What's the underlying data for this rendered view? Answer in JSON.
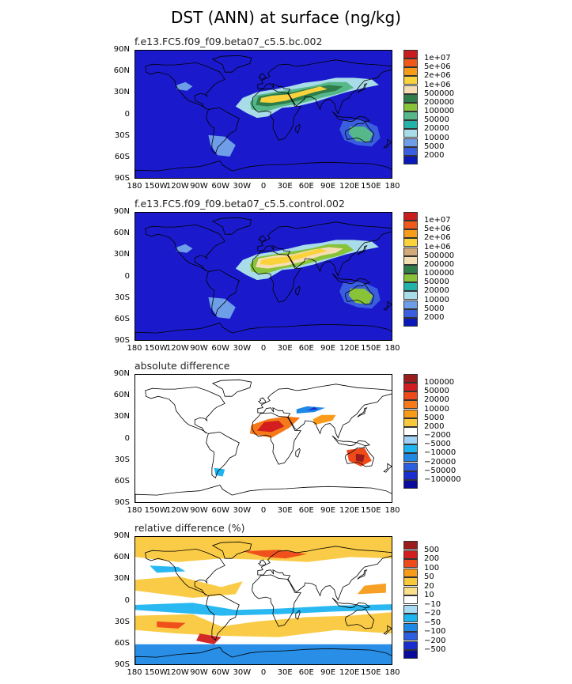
{
  "title": "DST (ANN) at surface (ng/kg)",
  "lat_ticks": [
    "90N",
    "60N",
    "30N",
    "0",
    "30S",
    "60S",
    "90S"
  ],
  "lon_ticks": [
    "180",
    "150W",
    "120W",
    "90W",
    "60W",
    "30W",
    "0",
    "30E",
    "60E",
    "90E",
    "120E",
    "150E",
    "180"
  ],
  "panels": [
    {
      "title": "f.e13.FC5.f09_f09.beta07_c5.5.bc.002",
      "ocean": "#1a1acc",
      "legend": [
        "1e+07",
        "5e+06",
        "2e+06",
        "1e+06",
        "500000",
        "200000",
        "100000",
        "50000",
        "20000",
        "10000",
        "5000",
        "2000"
      ],
      "colors": [
        "#c81e1e",
        "#ef5a1a",
        "#f79b1a",
        "#fad23c",
        "#f5deb3",
        "#2e7d4a",
        "#88c33a",
        "#56b88a",
        "#22b2a8",
        "#a8dce8",
        "#6e9ee8",
        "#3a5ee0",
        "#0a18b8"
      ]
    },
    {
      "title": "f.e13.FC5.f09_f09.beta07_c5.5.control.002",
      "ocean": "#1a1acc",
      "legend": [
        "1e+07",
        "5e+06",
        "2e+06",
        "1e+06",
        "500000",
        "200000",
        "100000",
        "50000",
        "20000",
        "10000",
        "5000",
        "2000"
      ],
      "colors": [
        "#c81e1e",
        "#ef5a1a",
        "#f79b1a",
        "#fad23c",
        "#d2aa7a",
        "#f5deb3",
        "#2e7d4a",
        "#88c33a",
        "#22b2a8",
        "#a8dce8",
        "#6e9ee8",
        "#3a5ee0",
        "#0a18b8"
      ]
    },
    {
      "title": "absolute difference",
      "ocean": "#ffffff",
      "legend": [
        "100000",
        "50000",
        "20000",
        "10000",
        "5000",
        "2000",
        "−2000",
        "−5000",
        "−10000",
        "−20000",
        "−50000",
        "−100000"
      ],
      "colors": [
        "#9b1c1c",
        "#d21e1e",
        "#ef4a1a",
        "#f77a1a",
        "#fa9b1a",
        "#fac83c",
        "#ffffff",
        "#a0d2f5",
        "#1eb4f0",
        "#1e88e5",
        "#2c5ee0",
        "#1a2ed0",
        "#0a0a9b"
      ]
    },
    {
      "title": "relative difference (%)",
      "ocean": "#ffffff",
      "legend": [
        "500",
        "200",
        "100",
        "50",
        "20",
        "10",
        "−10",
        "−20",
        "−50",
        "−100",
        "−200",
        "−500"
      ],
      "colors": [
        "#9b1c1c",
        "#d21e1e",
        "#ef4a1a",
        "#f79b1a",
        "#fac83c",
        "#fae08a",
        "#ffffff",
        "#a8dcf5",
        "#1eb4f0",
        "#1e88e5",
        "#2c5ee0",
        "#1a2ed0",
        "#0a0a9b"
      ]
    }
  ],
  "chart_data": {
    "type": "heatmap",
    "title": "DST (ANN) at surface (ng/kg)",
    "projection": "cylindrical equidistant",
    "xlim": [
      -180,
      180
    ],
    "ylim": [
      -90,
      90
    ],
    "grid": false,
    "legend_placement": "right",
    "maps": [
      {
        "title": "f.e13.FC5.f09_f09.beta07_c5.5.bc.002",
        "levels": [
          2000,
          5000,
          10000,
          20000,
          50000,
          100000,
          200000,
          500000,
          1000000,
          2000000,
          5000000,
          10000000
        ]
      },
      {
        "title": "f.e13.FC5.f09_f09.beta07_c5.5.control.002",
        "levels": [
          2000,
          5000,
          10000,
          20000,
          50000,
          100000,
          200000,
          500000,
          1000000,
          2000000,
          5000000,
          10000000
        ]
      },
      {
        "title": "absolute difference",
        "levels": [
          -100000,
          -50000,
          -20000,
          -10000,
          -5000,
          -2000,
          2000,
          5000,
          10000,
          20000,
          50000,
          100000
        ]
      },
      {
        "title": "relative difference (%)",
        "levels": [
          -500,
          -200,
          -100,
          -50,
          -20,
          -10,
          10,
          20,
          50,
          100,
          200,
          500
        ]
      }
    ]
  }
}
